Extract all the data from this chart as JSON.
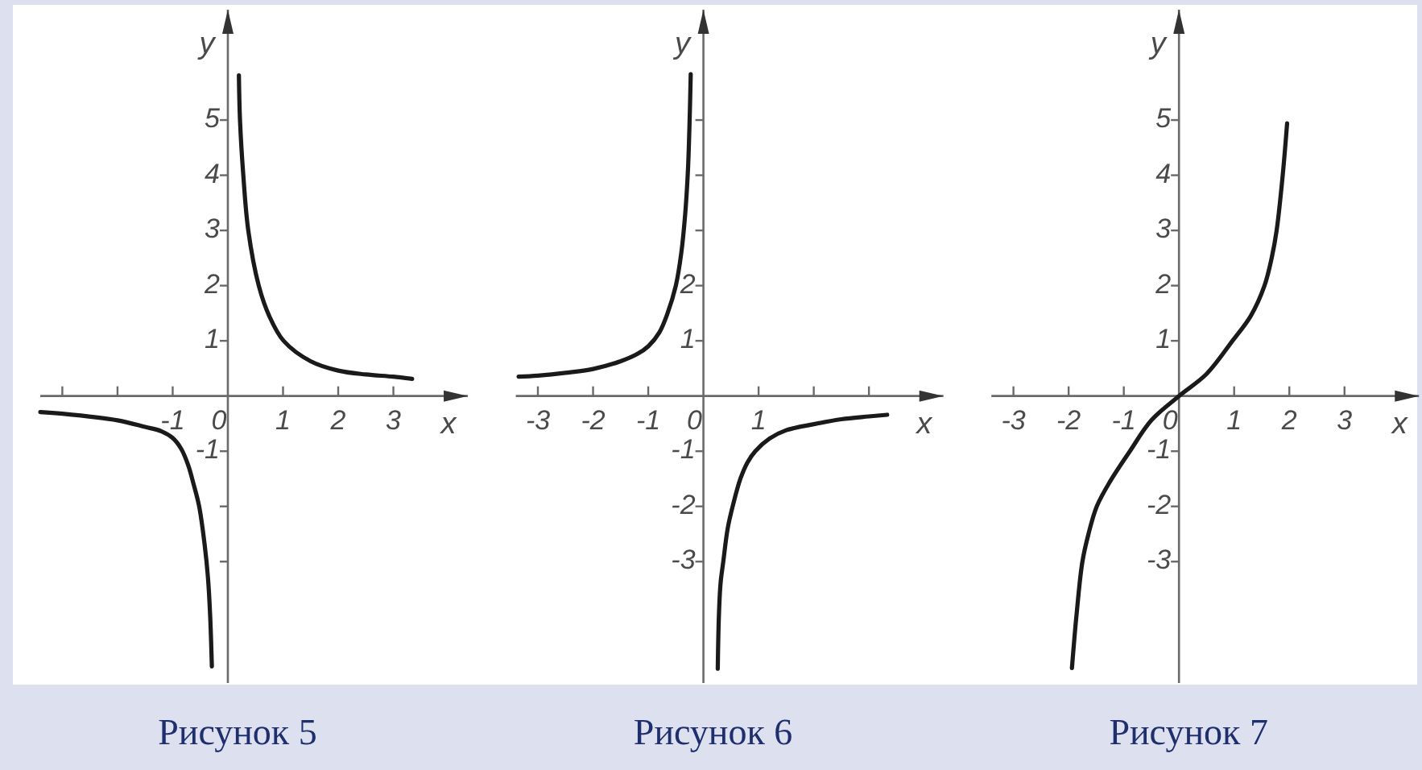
{
  "chart_data": [
    {
      "type": "line",
      "title": "Рисунок 5",
      "xlabel": "x",
      "ylabel": "y",
      "xlim": [
        -3.4,
        4.35
      ],
      "ylim": [
        -5.2,
        7
      ],
      "xticks": [
        {
          "value": -3,
          "label": null
        },
        {
          "value": -2,
          "label": null
        },
        -1,
        0,
        1,
        2,
        3
      ],
      "yticks": [
        {
          "value": -3,
          "label": null
        },
        {
          "value": -2,
          "label": null
        },
        -1,
        1,
        2,
        3,
        4,
        5
      ],
      "series": [
        {
          "color": "#1a1a1a",
          "x": [
            -3.4,
            -3,
            -2,
            -1.5,
            -1.2,
            -1,
            -0.85,
            -0.72,
            -0.62,
            -0.52,
            -0.42,
            -0.36,
            -0.32,
            -0.29
          ],
          "values": [
            -0.29,
            -0.32,
            -0.44,
            -0.56,
            -0.64,
            -0.76,
            -0.95,
            -1.25,
            -1.6,
            -2,
            -2.7,
            -3.3,
            -4,
            -4.9
          ]
        },
        {
          "color": "#1a1a1a",
          "x": [
            0.2,
            0.22,
            0.28,
            0.37,
            0.56,
            0.75,
            1.01,
            1.5,
            2,
            2.5,
            3,
            3.34
          ],
          "values": [
            5.81,
            5,
            4,
            3,
            2,
            1.45,
            1,
            0.63,
            0.46,
            0.39,
            0.35,
            0.31
          ]
        }
      ]
    },
    {
      "type": "line",
      "title": "Рисунок 6",
      "xlabel": "x",
      "ylabel": "y",
      "xlim": [
        -3.4,
        4.35
      ],
      "ylim": [
        -5.2,
        7
      ],
      "xticks": [
        -3,
        -2,
        -1,
        0,
        1,
        {
          "value": 2,
          "label": null
        },
        {
          "value": 3,
          "label": null
        }
      ],
      "yticks": [
        -3,
        -2,
        -1,
        1,
        2,
        {
          "value": 3,
          "label": null
        },
        {
          "value": 4,
          "label": null
        },
        {
          "value": 5,
          "label": null
        }
      ],
      "series": [
        {
          "color": "#1a1a1a",
          "x": [
            -3.35,
            -3,
            -2.5,
            -2,
            -1.5,
            -1.2,
            -1,
            -0.8,
            -0.65,
            -0.5,
            -0.4,
            -0.33,
            -0.28,
            -0.25,
            -0.23
          ],
          "values": [
            0.35,
            0.37,
            0.42,
            0.49,
            0.63,
            0.76,
            0.9,
            1.15,
            1.5,
            2,
            2.6,
            3.3,
            4.1,
            5,
            5.83
          ]
        },
        {
          "color": "#1a1a1a",
          "x": [
            0.26,
            0.28,
            0.31,
            0.36,
            0.44,
            0.53,
            0.67,
            0.8,
            0.94,
            1.2,
            1.5,
            2,
            2.5,
            3,
            3.33
          ],
          "values": [
            -4.94,
            -4,
            -3.4,
            -3,
            -2.4,
            -2,
            -1.5,
            -1.2,
            -1,
            -0.77,
            -0.62,
            -0.51,
            -0.42,
            -0.37,
            -0.34
          ]
        }
      ]
    },
    {
      "type": "line",
      "title": "Рисунок 7",
      "xlabel": "x",
      "ylabel": "y",
      "xlim": [
        -3.4,
        4.35
      ],
      "ylim": [
        -5.2,
        7
      ],
      "xticks": [
        -3,
        -2,
        -1,
        0,
        1,
        2,
        3
      ],
      "yticks": [
        -3,
        -2,
        -1,
        1,
        2,
        3,
        4,
        5
      ],
      "series": [
        {
          "color": "#1a1a1a",
          "x": [
            -1.94,
            -1.86,
            -1.75,
            -1.64,
            -1.49,
            -1.25,
            -0.89,
            -0.5,
            0,
            0.5,
            0.97,
            1.3,
            1.55,
            1.68,
            1.77,
            1.88,
            1.96
          ],
          "values": [
            -4.93,
            -4,
            -3,
            -2.5,
            -2,
            -1.55,
            -1,
            -0.44,
            0,
            0.4,
            1,
            1.45,
            2,
            2.5,
            3,
            4,
            4.94
          ]
        }
      ]
    }
  ]
}
